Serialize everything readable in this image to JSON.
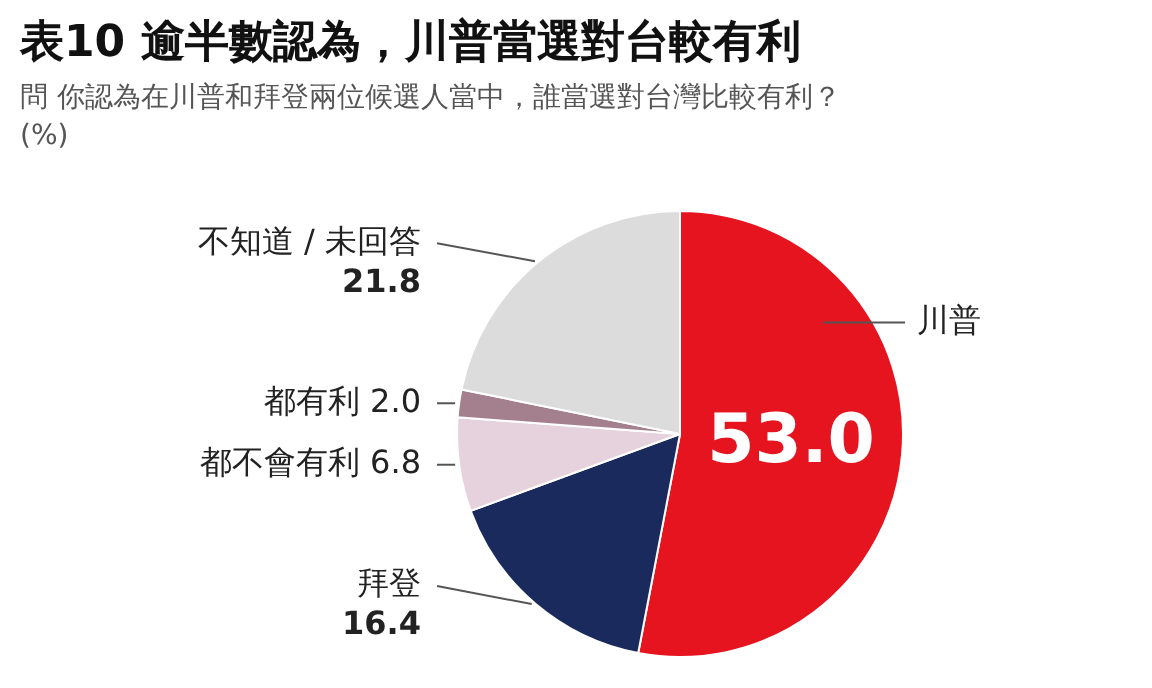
{
  "chart_data": {
    "type": "pie",
    "title": "表10 逾半數認為，川普當選對台較有利",
    "subtitle": "問 你認為在川普和拜登兩位候選人當中，誰當選對台灣比較有利？",
    "annotations": [
      "(%)"
    ],
    "categories": [
      "川普",
      "拜登",
      "都不會有利",
      "都有利",
      "不知道 / 未回答"
    ],
    "values": [
      53.0,
      16.4,
      6.8,
      2.0,
      21.8
    ],
    "value_labels": [
      "53.0",
      "16.4",
      "6.8",
      "2.0",
      "21.8"
    ],
    "colors": [
      "#e5141f",
      "#1b2a5c",
      "#e6d2dc",
      "#a4808f",
      "#dcdcdc"
    ],
    "legend": false
  }
}
